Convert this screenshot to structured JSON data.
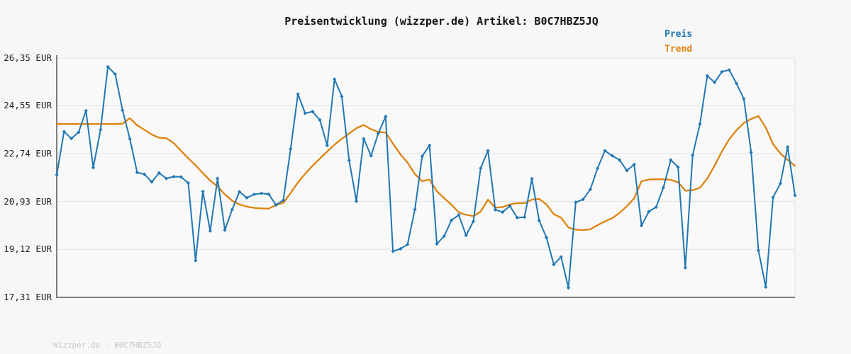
{
  "title": "Preisentwicklung (wizzper.de) Artikel: B0C7HBZ5JQ",
  "legend": {
    "price_label": "Preis",
    "trend_label": "Trend"
  },
  "footer": "Wizzper.de - B0C7HBZ5JQ",
  "colors": {
    "background": "#f7f7f7",
    "plot_background": "#f9f9f9",
    "grid": "#e3e3e3",
    "axis": "#7d7d7d",
    "price": "#1f77b4",
    "trend": "#de820f",
    "title_color": "#141414",
    "tick_color": "#222222",
    "footer_color": "#c8c8c8"
  },
  "chart_data": {
    "type": "line",
    "title": "Preisentwicklung (wizzper.de) Artikel: B0C7HBZ5JQ",
    "xlabel": "",
    "ylabel": "EUR",
    "ylim": [
      17.31,
      26.35
    ],
    "yticks": [
      "26,35 EUR",
      "24,55 EUR",
      "22,74 EUR",
      "20,93 EUR",
      "19,12 EUR",
      "17,31 EUR"
    ],
    "ytick_values": [
      26.35,
      24.55,
      22.74,
      20.93,
      19.12,
      17.31
    ],
    "x_axis_labels": "none",
    "grid": "horizontal",
    "legend_position": "top-right",
    "series": [
      {
        "name": "Preis",
        "color": "#1f77b4",
        "marker": "diamond",
        "values": [
          21.94,
          23.57,
          23.31,
          23.55,
          24.36,
          22.21,
          23.65,
          26.02,
          25.74,
          24.38,
          23.3,
          22.03,
          21.96,
          21.67,
          22.01,
          21.8,
          21.87,
          21.86,
          21.63,
          18.7,
          21.31,
          19.82,
          21.8,
          19.85,
          20.63,
          21.3,
          21.07,
          21.2,
          21.24,
          21.21,
          20.8,
          20.98,
          22.92,
          24.99,
          24.26,
          24.33,
          24.01,
          23.05,
          25.55,
          24.9,
          22.49,
          20.94,
          23.3,
          22.66,
          23.51,
          24.14,
          19.05,
          19.14,
          19.31,
          20.63,
          22.64,
          23.05,
          19.33,
          19.62,
          20.22,
          20.42,
          19.65,
          20.18,
          22.19,
          22.85,
          20.62,
          20.53,
          20.76,
          20.32,
          20.34,
          21.79,
          20.21,
          19.57,
          18.55,
          18.84,
          17.67,
          20.9,
          21.01,
          21.39,
          22.19,
          22.85,
          22.66,
          22.5,
          22.1,
          22.33,
          20.02,
          20.55,
          20.72,
          21.46,
          22.5,
          22.23,
          18.43,
          22.68,
          23.86,
          25.68,
          25.43,
          25.83,
          25.9,
          25.39,
          24.81,
          22.79,
          19.08,
          17.7,
          21.09,
          21.61,
          22.99,
          21.16
        ]
      },
      {
        "name": "Trend",
        "color": "#de820f",
        "marker": "none",
        "values": [
          23.86,
          23.86,
          23.86,
          23.86,
          23.86,
          23.86,
          23.86,
          23.86,
          23.86,
          23.87,
          24.08,
          23.81,
          23.64,
          23.46,
          23.34,
          23.32,
          23.14,
          22.85,
          22.56,
          22.3,
          22.0,
          21.72,
          21.5,
          21.2,
          20.96,
          20.82,
          20.74,
          20.69,
          20.67,
          20.66,
          20.8,
          20.88,
          21.25,
          21.65,
          21.98,
          22.28,
          22.55,
          22.82,
          23.08,
          23.3,
          23.5,
          23.7,
          23.82,
          23.66,
          23.56,
          23.54,
          23.12,
          22.72,
          22.4,
          21.97,
          21.7,
          21.76,
          21.32,
          21.06,
          20.81,
          20.52,
          20.43,
          20.38,
          20.55,
          21.0,
          20.7,
          20.72,
          20.82,
          20.87,
          20.87,
          21.0,
          21.03,
          20.82,
          20.45,
          20.32,
          19.95,
          19.87,
          19.85,
          19.88,
          20.04,
          20.18,
          20.3,
          20.5,
          20.75,
          21.05,
          21.7,
          21.76,
          21.77,
          21.77,
          21.75,
          21.66,
          21.34,
          21.36,
          21.45,
          21.8,
          22.28,
          22.82,
          23.28,
          23.62,
          23.9,
          24.05,
          24.16,
          23.72,
          23.1,
          22.75,
          22.5,
          22.28
        ]
      }
    ]
  }
}
